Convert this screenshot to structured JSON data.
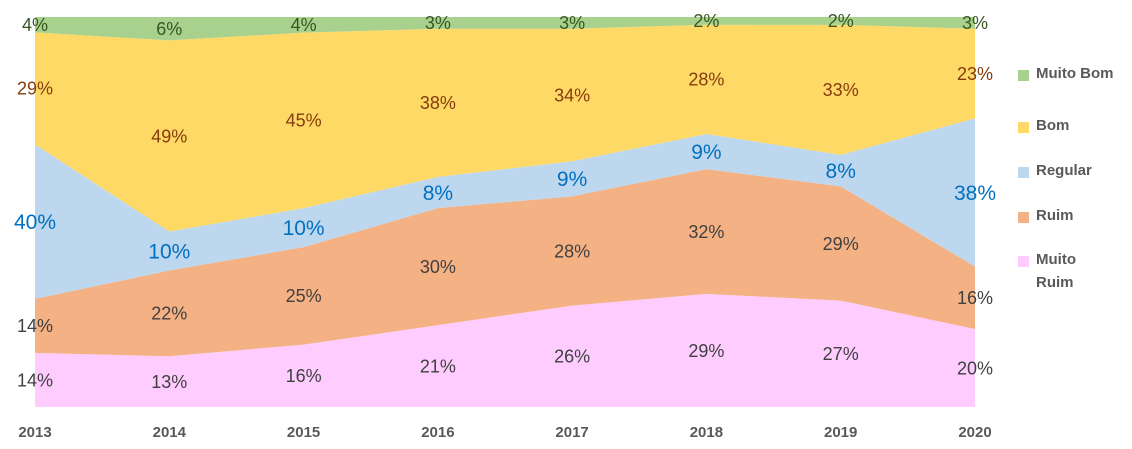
{
  "chart_data": {
    "type": "area",
    "stacked": true,
    "normalized": true,
    "categories": [
      "2013",
      "2014",
      "2015",
      "2016",
      "2017",
      "2018",
      "2019",
      "2020"
    ],
    "ylim": [
      0,
      100
    ],
    "series": [
      {
        "name": "Muito Ruim",
        "color": "#ffccff",
        "label_color": "#404040",
        "values": [
          14,
          13,
          16,
          21,
          26,
          29,
          27,
          20
        ],
        "labels": [
          "14%",
          "13%",
          "16%",
          "21%",
          "26%",
          "29%",
          "27%",
          "20%"
        ]
      },
      {
        "name": "Ruim",
        "color": "#f4b183",
        "label_color": "#404040",
        "values": [
          14,
          22,
          25,
          30,
          28,
          32,
          29,
          16
        ],
        "labels": [
          "14%",
          "22%",
          "25%",
          "30%",
          "28%",
          "32%",
          "29%",
          "16%"
        ]
      },
      {
        "name": "Regular",
        "color": "#bdd7ee",
        "label_color": "#0070c0",
        "values": [
          40,
          10,
          10,
          8,
          9,
          9,
          8,
          38
        ],
        "labels": [
          "40%",
          "10%",
          "10%",
          "8%",
          "9%",
          "9%",
          "8%",
          "38%"
        ]
      },
      {
        "name": "Bom",
        "color": "#ffd966",
        "label_color": "#843c0c",
        "values": [
          29,
          49,
          45,
          38,
          34,
          28,
          33,
          23
        ],
        "labels": [
          "29%",
          "49%",
          "45%",
          "38%",
          "34%",
          "28%",
          "33%",
          "23%"
        ]
      },
      {
        "name": "Muito Bom",
        "color": "#a9d18e",
        "label_color": "#375623",
        "values": [
          4,
          6,
          4,
          3,
          3,
          2,
          2,
          3
        ],
        "labels": [
          "4%",
          "6%",
          "4%",
          "3%",
          "3%",
          "2%",
          "2%",
          "3%"
        ]
      }
    ],
    "legend": {
      "position": "right",
      "items": [
        {
          "label": "Muito Bom",
          "color": "#a9d18e"
        },
        {
          "label": "Bom",
          "color": "#ffd966"
        },
        {
          "label": "Regular",
          "color": "#bdd7ee"
        },
        {
          "label": "Ruim",
          "color": "#f4b183"
        },
        {
          "label": "Muito Ruim",
          "color": "#ffccff"
        }
      ]
    }
  }
}
